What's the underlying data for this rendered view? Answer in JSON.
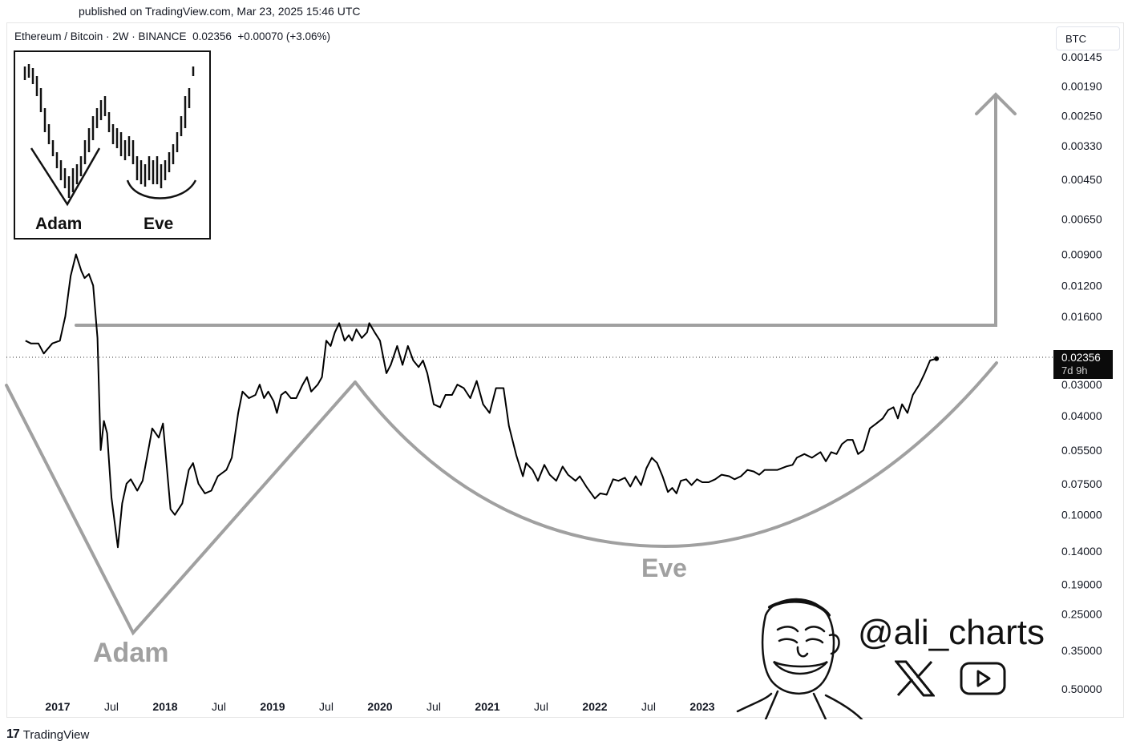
{
  "header": {
    "published": "published on TradingView.com, Mar 23, 2025 15:46 UTC",
    "symbol": "Ethereum / Bitcoin · 2W · BINANCE",
    "price": "0.02356",
    "change": "+0.00070 (+3.06%)",
    "currency_button": "BTC"
  },
  "price_tag": {
    "value": "0.02356",
    "countdown": "7d 9h"
  },
  "inset": {
    "left_label": "Adam",
    "right_label": "Eve"
  },
  "watermark": {
    "handle": "@ali_charts",
    "icons": [
      "x-logo-icon",
      "youtube-icon",
      "cartoon-face-icon"
    ]
  },
  "footer": {
    "brand": "TradingView"
  },
  "colors": {
    "pattern_gray": "#a0a0a0",
    "price_line": "#000000",
    "price_tag_bg": "#0b0b0b"
  },
  "chart_data": {
    "type": "line",
    "scale": "inverted-log",
    "y_ticks": [
      "0.00145",
      "0.00190",
      "0.00250",
      "0.00330",
      "0.00450",
      "0.00650",
      "0.00900",
      "0.01200",
      "0.01600",
      "0.02300",
      "0.03000",
      "0.04000",
      "0.05500",
      "0.07500",
      "0.10000",
      "0.14000",
      "0.19000",
      "0.25000",
      "0.35000",
      "0.50000"
    ],
    "x_ticks": [
      {
        "label": "2017",
        "year": true
      },
      {
        "label": "Jul",
        "year": false
      },
      {
        "label": "2018",
        "year": true
      },
      {
        "label": "Jul",
        "year": false
      },
      {
        "label": "2019",
        "year": true
      },
      {
        "label": "Jul",
        "year": false
      },
      {
        "label": "2020",
        "year": true
      },
      {
        "label": "Jul",
        "year": false
      },
      {
        "label": "2021",
        "year": true
      },
      {
        "label": "Jul",
        "year": false
      },
      {
        "label": "2022",
        "year": true
      },
      {
        "label": "Jul",
        "year": false
      },
      {
        "label": "2023",
        "year": true
      }
    ],
    "annotations": {
      "adam": "Adam",
      "eve": "Eve"
    },
    "series": [
      {
        "values": [
          [
            2016.7,
            0.02
          ],
          [
            2016.75,
            0.0205
          ],
          [
            2016.82,
            0.0205
          ],
          [
            2016.87,
            0.0225
          ],
          [
            2016.95,
            0.0205
          ],
          [
            2017.02,
            0.02
          ],
          [
            2017.07,
            0.016
          ],
          [
            2017.12,
            0.011
          ],
          [
            2017.17,
            0.009
          ],
          [
            2017.22,
            0.0105
          ],
          [
            2017.25,
            0.0112
          ],
          [
            2017.29,
            0.0108
          ],
          [
            2017.33,
            0.012
          ],
          [
            2017.37,
            0.0195
          ],
          [
            2017.4,
            0.055
          ],
          [
            2017.43,
            0.042
          ],
          [
            2017.46,
            0.047
          ],
          [
            2017.5,
            0.085
          ],
          [
            2017.56,
            0.135
          ],
          [
            2017.6,
            0.09
          ],
          [
            2017.64,
            0.075
          ],
          [
            2017.68,
            0.072
          ],
          [
            2017.74,
            0.08
          ],
          [
            2017.79,
            0.073
          ],
          [
            2017.85,
            0.053
          ],
          [
            2017.88,
            0.045
          ],
          [
            2017.94,
            0.049
          ],
          [
            2017.98,
            0.043
          ],
          [
            2018.05,
            0.095
          ],
          [
            2018.09,
            0.1
          ],
          [
            2018.16,
            0.09
          ],
          [
            2018.22,
            0.066
          ],
          [
            2018.26,
            0.062
          ],
          [
            2018.31,
            0.075
          ],
          [
            2018.37,
            0.082
          ],
          [
            2018.43,
            0.08
          ],
          [
            2018.49,
            0.07
          ],
          [
            2018.57,
            0.066
          ],
          [
            2018.62,
            0.059
          ],
          [
            2018.68,
            0.039
          ],
          [
            2018.72,
            0.032
          ],
          [
            2018.78,
            0.034
          ],
          [
            2018.84,
            0.033
          ],
          [
            2018.88,
            0.03
          ],
          [
            2018.92,
            0.034
          ],
          [
            2018.96,
            0.032
          ],
          [
            2019.01,
            0.035
          ],
          [
            2019.04,
            0.039
          ],
          [
            2019.08,
            0.033
          ],
          [
            2019.12,
            0.032
          ],
          [
            2019.17,
            0.034
          ],
          [
            2019.22,
            0.034
          ],
          [
            2019.28,
            0.03
          ],
          [
            2019.32,
            0.028
          ],
          [
            2019.36,
            0.032
          ],
          [
            2019.42,
            0.03
          ],
          [
            2019.46,
            0.028
          ],
          [
            2019.5,
            0.02
          ],
          [
            2019.54,
            0.021
          ],
          [
            2019.58,
            0.0185
          ],
          [
            2019.62,
            0.017
          ],
          [
            2019.67,
            0.02
          ],
          [
            2019.71,
            0.019
          ],
          [
            2019.74,
            0.02
          ],
          [
            2019.78,
            0.018
          ],
          [
            2019.83,
            0.0195
          ],
          [
            2019.88,
            0.0185
          ],
          [
            2019.9,
            0.017
          ],
          [
            2019.95,
            0.0185
          ],
          [
            2020.0,
            0.02
          ],
          [
            2020.06,
            0.027
          ],
          [
            2020.1,
            0.025
          ],
          [
            2020.16,
            0.021
          ],
          [
            2020.21,
            0.025
          ],
          [
            2020.26,
            0.021
          ],
          [
            2020.31,
            0.024
          ],
          [
            2020.36,
            0.0255
          ],
          [
            2020.4,
            0.024
          ],
          [
            2020.44,
            0.027
          ],
          [
            2020.5,
            0.036
          ],
          [
            2020.56,
            0.037
          ],
          [
            2020.61,
            0.033
          ],
          [
            2020.67,
            0.033
          ],
          [
            2020.72,
            0.03
          ],
          [
            2020.78,
            0.031
          ],
          [
            2020.84,
            0.034
          ],
          [
            2020.9,
            0.029
          ],
          [
            2020.96,
            0.036
          ],
          [
            2021.02,
            0.039
          ],
          [
            2021.08,
            0.031
          ],
          [
            2021.15,
            0.031
          ],
          [
            2021.2,
            0.044
          ],
          [
            2021.27,
            0.058
          ],
          [
            2021.33,
            0.07
          ],
          [
            2021.36,
            0.062
          ],
          [
            2021.42,
            0.066
          ],
          [
            2021.47,
            0.073
          ],
          [
            2021.53,
            0.063
          ],
          [
            2021.58,
            0.069
          ],
          [
            2021.64,
            0.073
          ],
          [
            2021.7,
            0.064
          ],
          [
            2021.75,
            0.069
          ],
          [
            2021.82,
            0.073
          ],
          [
            2021.86,
            0.07
          ],
          [
            2021.92,
            0.077
          ],
          [
            2022.0,
            0.086
          ],
          [
            2022.05,
            0.082
          ],
          [
            2022.11,
            0.083
          ],
          [
            2022.17,
            0.072
          ],
          [
            2022.22,
            0.073
          ],
          [
            2022.28,
            0.071
          ],
          [
            2022.33,
            0.077
          ],
          [
            2022.38,
            0.07
          ],
          [
            2022.43,
            0.076
          ],
          [
            2022.48,
            0.065
          ],
          [
            2022.53,
            0.059
          ],
          [
            2022.58,
            0.062
          ],
          [
            2022.63,
            0.07
          ],
          [
            2022.68,
            0.081
          ],
          [
            2022.72,
            0.078
          ],
          [
            2022.76,
            0.082
          ],
          [
            2022.8,
            0.073
          ],
          [
            2022.85,
            0.072
          ],
          [
            2022.9,
            0.076
          ],
          [
            2022.95,
            0.072
          ],
          [
            2023.0,
            0.074
          ],
          [
            2023.06,
            0.074
          ],
          [
            2023.12,
            0.072
          ],
          [
            2023.18,
            0.069
          ],
          [
            2023.25,
            0.07
          ],
          [
            2023.3,
            0.072
          ],
          [
            2023.36,
            0.07
          ],
          [
            2023.42,
            0.066
          ],
          [
            2023.48,
            0.067
          ],
          [
            2023.53,
            0.069
          ],
          [
            2023.58,
            0.066
          ],
          [
            2023.62,
            0.066
          ],
          [
            2023.7,
            0.066
          ],
          [
            2023.78,
            0.064
          ],
          [
            2023.84,
            0.063
          ],
          [
            2023.88,
            0.059
          ],
          [
            2023.95,
            0.057
          ],
          [
            2024.02,
            0.059
          ],
          [
            2024.1,
            0.056
          ],
          [
            2024.15,
            0.061
          ],
          [
            2024.2,
            0.056
          ],
          [
            2024.25,
            0.057
          ],
          [
            2024.3,
            0.052
          ],
          [
            2024.35,
            0.05
          ],
          [
            2024.4,
            0.05
          ],
          [
            2024.45,
            0.057
          ],
          [
            2024.5,
            0.055
          ],
          [
            2024.56,
            0.045
          ],
          [
            2024.62,
            0.043
          ],
          [
            2024.68,
            0.041
          ],
          [
            2024.73,
            0.038
          ],
          [
            2024.78,
            0.037
          ],
          [
            2024.82,
            0.041
          ],
          [
            2024.86,
            0.036
          ],
          [
            2024.91,
            0.039
          ],
          [
            2024.96,
            0.033
          ],
          [
            2025.02,
            0.03
          ],
          [
            2025.07,
            0.027
          ],
          [
            2025.12,
            0.024
          ],
          [
            2025.18,
            0.0236
          ]
        ]
      }
    ]
  }
}
